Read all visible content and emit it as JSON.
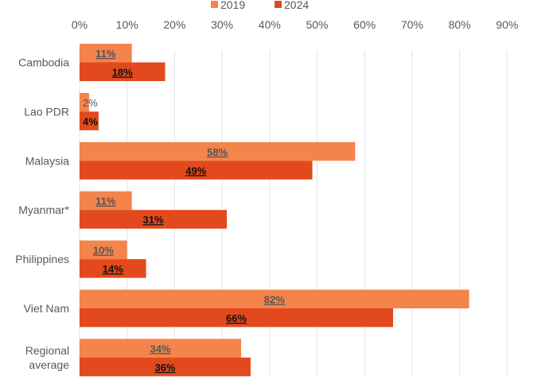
{
  "chart_data": {
    "type": "bar",
    "orientation": "horizontal",
    "categories": [
      "Cambodia",
      "Lao PDR",
      "Malaysia",
      "Myanmar*",
      "Philippines",
      "Viet Nam",
      "Regional average"
    ],
    "series": [
      {
        "name": "2019",
        "color": "#F4844C",
        "values": [
          11,
          2,
          58,
          11,
          10,
          82,
          34
        ],
        "labels": [
          "11%",
          "2%",
          "58%",
          "11%",
          "10%",
          "82%",
          "34%"
        ]
      },
      {
        "name": "2024",
        "color": "#E2491D",
        "values": [
          18,
          4,
          49,
          31,
          14,
          66,
          36
        ],
        "labels": [
          "18%",
          "4%",
          "49%",
          "31%",
          "14%",
          "66%",
          "36%"
        ]
      }
    ],
    "xlim": [
      0,
      90
    ],
    "xticks": [
      "0%",
      "10%",
      "20%",
      "30%",
      "40%",
      "50%",
      "60%",
      "70%",
      "80%",
      "90%"
    ],
    "axis_position": "top",
    "grid": true,
    "legend": "top-center",
    "title": "",
    "xlabel": "",
    "ylabel": ""
  }
}
